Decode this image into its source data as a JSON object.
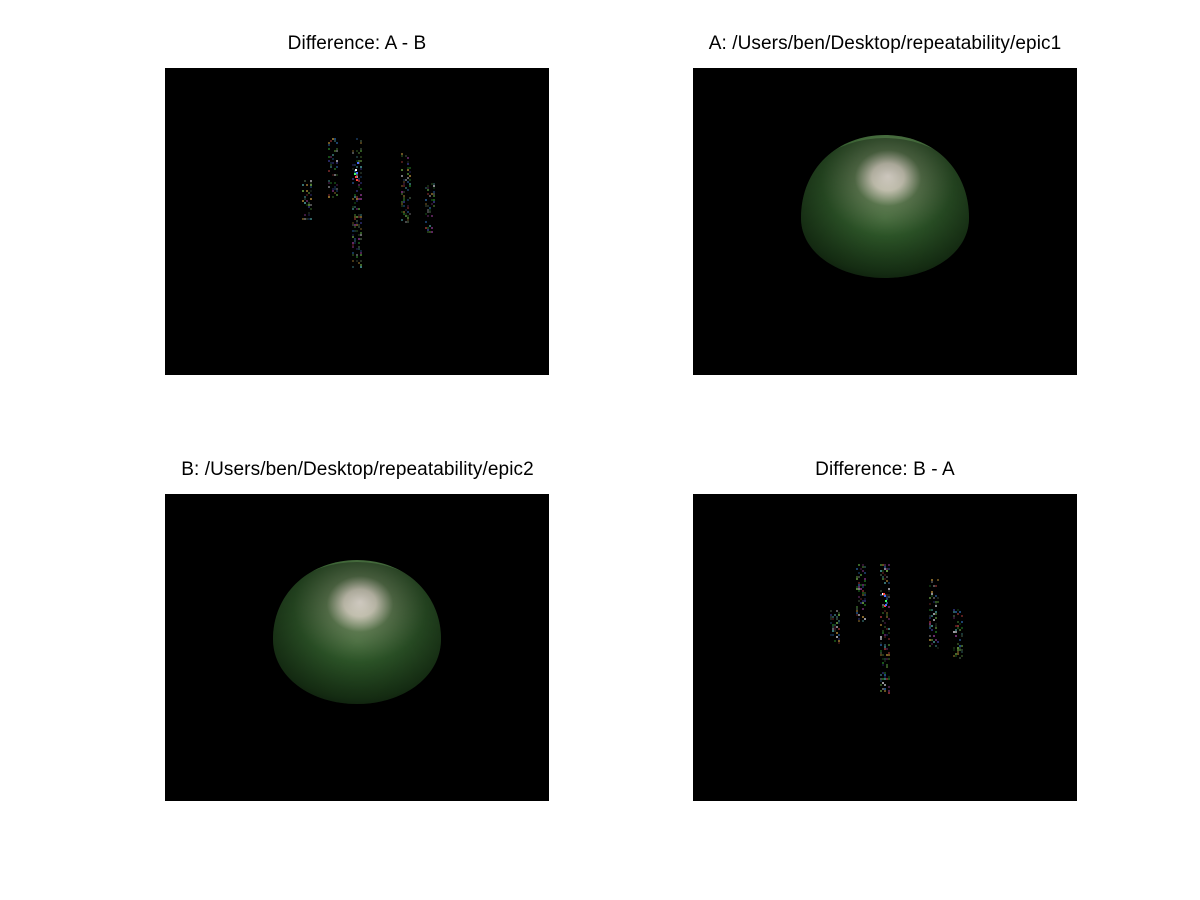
{
  "figure": {
    "panels": [
      {
        "title": "Difference: A - B",
        "kind": "difference"
      },
      {
        "title": "A: /Users/ben/Desktop/repeatability/epic1",
        "kind": "render"
      },
      {
        "title": "B: /Users/ben/Desktop/repeatability/epic2",
        "kind": "render"
      },
      {
        "title": "Difference: B - A",
        "kind": "difference"
      }
    ]
  },
  "colors": {
    "background": "#000000",
    "sphere_base": "#2f5a2a",
    "sphere_dark": "#0c1a0b",
    "highlight": "#f4ece0"
  }
}
